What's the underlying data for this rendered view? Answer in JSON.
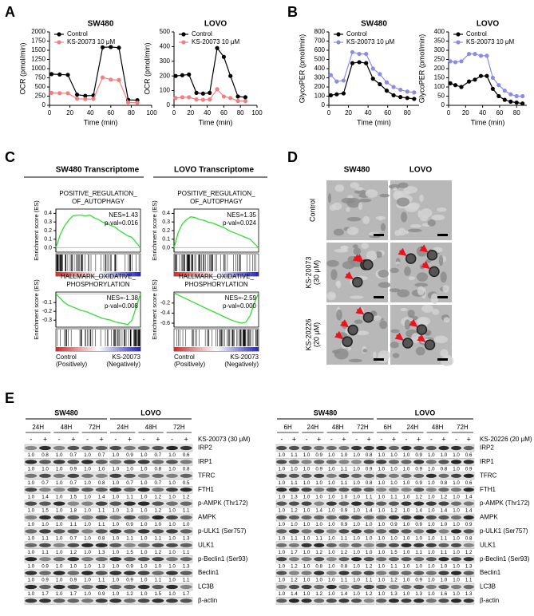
{
  "panel_labels": [
    "A",
    "B",
    "C",
    "D",
    "E"
  ],
  "chart_data": [
    {
      "type": "line",
      "title": "SW480",
      "xlabel": "Time (min)",
      "ylabel": "OCR (pmol/min)",
      "x": [
        2,
        10,
        18,
        27,
        35,
        43,
        52,
        60,
        68,
        77,
        86
      ],
      "xlim": [
        0,
        100
      ],
      "ylim": [
        0,
        2000
      ],
      "xticks": [
        0,
        20,
        40,
        60,
        80,
        100
      ],
      "yticks": [
        0,
        250,
        500,
        750,
        1000,
        1250,
        1500,
        1750,
        2000
      ],
      "legend": "upper left",
      "series": [
        {
          "name": "Control",
          "color": "#000000",
          "values": [
            850,
            840,
            830,
            290,
            260,
            270,
            1580,
            1590,
            1570,
            150,
            140
          ]
        },
        {
          "name": "KS-20073 10 μM",
          "color": "#f08080",
          "values": [
            340,
            330,
            330,
            180,
            170,
            175,
            760,
            700,
            690,
            80,
            70
          ]
        }
      ]
    },
    {
      "type": "line",
      "title": "LOVO",
      "xlabel": "Time (min)",
      "ylabel": "OCR (pmol/min)",
      "x": [
        2,
        10,
        18,
        27,
        35,
        43,
        52,
        60,
        68,
        77,
        86
      ],
      "xlim": [
        0,
        100
      ],
      "ylim": [
        0,
        500
      ],
      "xticks": [
        0,
        20,
        40,
        60,
        80,
        100
      ],
      "yticks": [
        0,
        100,
        200,
        300,
        400,
        500
      ],
      "legend": "upper left",
      "series": [
        {
          "name": "Control",
          "color": "#000000",
          "values": [
            200,
            205,
            210,
            85,
            80,
            85,
            390,
            330,
            200,
            60,
            55
          ]
        },
        {
          "name": "KS-20073 10 μM",
          "color": "#f08080",
          "values": [
            50,
            55,
            55,
            40,
            38,
            40,
            110,
            60,
            50,
            30,
            28
          ]
        }
      ]
    },
    {
      "type": "line",
      "title": "SW480",
      "xlabel": "Time (min)",
      "ylabel": "GlycoPER (pmol/min)",
      "x": [
        2,
        8,
        15,
        24,
        31,
        38,
        45,
        52,
        59,
        66,
        73,
        80,
        87
      ],
      "xlim": [
        0,
        92
      ],
      "ylim": [
        0,
        800
      ],
      "xticks": [
        0,
        20,
        40,
        60,
        80
      ],
      "yticks": [
        0,
        100,
        200,
        300,
        400,
        500,
        600,
        700,
        800
      ],
      "legend": "upper left",
      "series": [
        {
          "name": "Control",
          "color": "#000000",
          "values": [
            110,
            120,
            130,
            460,
            470,
            460,
            290,
            230,
            160,
            110,
            90,
            80,
            70
          ]
        },
        {
          "name": "KS-20073 10 μM",
          "color": "#8b8be8",
          "values": [
            330,
            260,
            270,
            580,
            560,
            560,
            400,
            340,
            250,
            200,
            170,
            150,
            140
          ]
        }
      ]
    },
    {
      "type": "line",
      "title": "LOVO",
      "xlabel": "Time (min)",
      "ylabel": "GlycoPER (pmol/min)",
      "x": [
        2,
        8,
        15,
        24,
        31,
        38,
        45,
        52,
        59,
        66,
        73,
        80,
        87
      ],
      "xlim": [
        0,
        92
      ],
      "ylim": [
        0,
        400
      ],
      "xticks": [
        0,
        20,
        40,
        60,
        80
      ],
      "yticks": [
        0,
        50,
        100,
        150,
        200,
        250,
        300,
        350,
        400
      ],
      "legend": "upper left",
      "series": [
        {
          "name": "Control",
          "color": "#000000",
          "values": [
            120,
            110,
            100,
            130,
            140,
            160,
            160,
            90,
            50,
            30,
            20,
            15,
            10
          ]
        },
        {
          "name": "KS-20073 10 μM",
          "color": "#8b8be8",
          "values": [
            240,
            235,
            240,
            280,
            280,
            270,
            270,
            150,
            110,
            80,
            60,
            50,
            50
          ]
        }
      ]
    },
    {
      "type": "line",
      "title_lines": [
        "POSITIVE_REGULATION_",
        "OF_AUTOPHAGY"
      ],
      "annotations": [
        "NES=1.43",
        "p-val=0.016"
      ],
      "ylabel": "Enrichment score (ES)",
      "color": "#33dd33",
      "xlim": [
        0,
        100
      ],
      "ylim": [
        -0.05,
        0.45
      ],
      "yticks": [
        {
          "value": 0,
          "label": "0.0"
        },
        0.1,
        0.2,
        0.3,
        0.4
      ],
      "x": [
        0,
        5,
        10,
        15,
        20,
        25,
        30,
        35,
        40,
        45,
        50,
        55,
        60,
        65,
        70,
        75,
        80,
        85,
        90,
        95,
        100
      ],
      "values": [
        0,
        0.15,
        0.25,
        0.32,
        0.37,
        0.38,
        0.38,
        0.37,
        0.38,
        0.35,
        0.33,
        0.3,
        0.28,
        0.26,
        0.24,
        0.2,
        0.17,
        0.14,
        0.12,
        0.06,
        0
      ]
    },
    {
      "type": "line",
      "title_lines": [
        "POSITIVE_REGULATION_",
        "OF_AUTOPHAGY"
      ],
      "annotations": [
        "NES=1.35",
        "p-val=0.024"
      ],
      "ylabel": "Enrichment score (ES)",
      "color": "#33dd33",
      "xlim": [
        0,
        100
      ],
      "ylim": [
        -0.05,
        0.45
      ],
      "yticks": [
        {
          "value": 0,
          "label": "0.0"
        },
        0.1,
        0.2,
        0.3,
        0.4
      ],
      "x": [
        0,
        5,
        10,
        15,
        20,
        25,
        30,
        35,
        40,
        45,
        50,
        55,
        60,
        65,
        70,
        75,
        80,
        85,
        90,
        95,
        100
      ],
      "values": [
        0,
        0.18,
        0.28,
        0.33,
        0.36,
        0.35,
        0.33,
        0.32,
        0.3,
        0.29,
        0.27,
        0.25,
        0.23,
        0.2,
        0.18,
        0.16,
        0.14,
        0.12,
        0.1,
        0.05,
        0
      ]
    },
    {
      "type": "line",
      "title_lines": [
        "HALLMARK_OXIDATIVE_",
        "PHOSPHORYLATION"
      ],
      "annotations": [
        "NES=-1.38",
        "p-val=0.008"
      ],
      "ylabel": "Enrichment score (ES)",
      "color": "#33dd33",
      "xlim": [
        0,
        100
      ],
      "ylim": [
        -0.38,
        0.02
      ],
      "yticks": [
        -0.1,
        -0.2,
        -0.3
      ],
      "x": [
        0,
        5,
        10,
        15,
        20,
        25,
        30,
        35,
        40,
        45,
        50,
        55,
        60,
        65,
        70,
        75,
        80,
        85,
        90,
        95,
        100
      ],
      "values": [
        0,
        -0.05,
        -0.1,
        -0.13,
        -0.15,
        -0.17,
        -0.19,
        -0.2,
        -0.22,
        -0.24,
        -0.26,
        -0.28,
        -0.29,
        -0.3,
        -0.32,
        -0.33,
        -0.34,
        -0.35,
        -0.3,
        -0.15,
        0
      ]
    },
    {
      "type": "line",
      "title_lines": [
        "HALLMARK_OXIDATIVE_",
        "PHOSPHORYLATION"
      ],
      "annotations": [
        "NES=-2.59",
        "p-val=0.000"
      ],
      "ylabel": "Enrichment score (ES)",
      "color": "#33dd33",
      "xlim": [
        0,
        100
      ],
      "ylim": [
        -0.68,
        0.02
      ],
      "yticks": [
        -0.2,
        -0.4,
        -0.6
      ],
      "x": [
        0,
        5,
        10,
        15,
        20,
        25,
        30,
        35,
        40,
        45,
        50,
        55,
        60,
        65,
        70,
        75,
        80,
        85,
        90,
        95,
        100
      ],
      "values": [
        0,
        -0.04,
        -0.08,
        -0.12,
        -0.16,
        -0.2,
        -0.24,
        -0.28,
        -0.32,
        -0.36,
        -0.4,
        -0.44,
        -0.48,
        -0.52,
        -0.55,
        -0.58,
        -0.6,
        -0.58,
        -0.45,
        -0.2,
        0
      ]
    }
  ],
  "panel_c": {
    "columns": [
      "SW480 Transcriptome",
      "LOVO Transcriptome"
    ],
    "left_label": [
      "Control",
      "(Positively)"
    ],
    "right_label": [
      "KS-20073",
      "(Negatively)"
    ]
  },
  "panel_d": {
    "columns": [
      "SW480",
      "LOVO"
    ],
    "rows": [
      [
        "Control"
      ],
      [
        "KS-20073",
        "(30 μM)"
      ],
      [
        "KS-20226",
        "(20 μM)"
      ]
    ]
  },
  "panel_e": {
    "blots": [
      {
        "cell_lines": [
          "SW480",
          "LOVO"
        ],
        "times": [
          "24H",
          "48H",
          "72H"
        ],
        "signs": [
          "-",
          "+"
        ],
        "treatment": "KS-20073 (30 μM)",
        "proteins": [
          "IRP2",
          "IRP1",
          "TFRC",
          "FTH1",
          "p-AMPK (Thr172)",
          "AMPK",
          "p-ULK1 (Ser757)",
          "ULK1",
          "p-Beclin1 (Ser93)",
          "Beclin1",
          "LC3B",
          "β-actin"
        ],
        "quant": [
          [
            "1.0",
            "0.8",
            "1.0",
            "0.7",
            "1.0",
            "0.7",
            "1.0",
            "0.9",
            "1.0",
            "0.7",
            "1.0",
            "0.6"
          ],
          [
            "1.0",
            "1.0",
            "1.0",
            "0.9",
            "1.0",
            "1.0",
            "1.0",
            "1.0",
            "1.0",
            "0.8",
            "1.0",
            "0.8"
          ],
          [
            "1.0",
            "0.7",
            "1.0",
            "0.7",
            "1.0",
            "0.8",
            "1.0",
            "0.7",
            "1.0",
            "0.7",
            "1.0",
            "0.5"
          ],
          [
            "1.0",
            "1.4",
            "1.0",
            "1.5",
            "1.0",
            "1.4",
            "1.0",
            "1.1",
            "1.0",
            "1.2",
            "1.0",
            "1.2"
          ],
          [
            "1.0",
            "1.5",
            "1.0",
            "1.8",
            "1.0",
            "1.1",
            "1.0",
            "1.3",
            "1.0",
            "1.2",
            "1.0",
            "1.1"
          ],
          [
            "1.0",
            "1.0",
            "1.0",
            "1.1",
            "1.0",
            "1.1",
            "1.0",
            "0.9",
            "1.0",
            "1.0",
            "1.0",
            "1.0"
          ],
          [
            "1.0",
            "1.1",
            "1.0",
            "0.7",
            "1.0",
            "0.8",
            "1.0",
            "1.1",
            "1.0",
            "1.1",
            "1.0",
            "1.3"
          ],
          [
            "1.0",
            "1.1",
            "1.0",
            "1.2",
            "1.0",
            "1.3",
            "1.0",
            "1.5",
            "1.0",
            "1.2",
            "1.0",
            "1.1"
          ],
          [
            "1.0",
            "0.9",
            "1.0",
            "1.0",
            "1.0",
            "1.3",
            "1.0",
            "0.9",
            "1.0",
            "1.0",
            "1.0",
            "1.3"
          ],
          [
            "1.0",
            "0.9",
            "1.0",
            "0.9",
            "1.0",
            "1.1",
            "1.0",
            "0.9",
            "1.0",
            "1.1",
            "1.0",
            "1.1"
          ],
          [
            "1.0",
            "1.7",
            "1.0",
            "1.7",
            "1.0",
            "0.9",
            "1.0",
            "1.2",
            "1.0",
            "1.5",
            "1.0",
            "1.7"
          ]
        ]
      },
      {
        "cell_lines": [
          "SW480",
          "LOVO"
        ],
        "times": [
          "6H",
          "24H",
          "48H",
          "72H"
        ],
        "signs": [
          "-",
          "+"
        ],
        "treatment": "KS-20226 (20 μM)",
        "proteins": [
          "IRP2",
          "IRP1",
          "TFRC",
          "FTH1",
          "p-AMPK (Thr172)",
          "AMPK",
          "p-ULK1 (Ser757)",
          "ULK1",
          "p-Beclin1 (Ser93)",
          "Beclin1",
          "LC3B",
          "β-actin"
        ],
        "quant": [
          [
            "1.0",
            "1.1",
            "1.0",
            "0.9",
            "1.0",
            "1.0",
            "1.0",
            "0.8",
            "1.0",
            "1.0",
            "1.0",
            "0.9",
            "1.0",
            "1.0",
            "1.0",
            "0.6"
          ],
          [
            "1.0",
            "1.0",
            "1.0",
            "0.9",
            "1.0",
            "1.1",
            "1.0",
            "0.9",
            "1.0",
            "1.0",
            "1.0",
            "0.9",
            "1.0",
            "0.8",
            "1.0",
            "0.9"
          ],
          [
            "1.0",
            "1.1",
            "1.0",
            "1.0",
            "1.0",
            "1.1",
            "1.0",
            "0.8",
            "1.0",
            "1.0",
            "1.0",
            "0.9",
            "1.0",
            "0.8",
            "1.0",
            "0.6"
          ],
          [
            "1.0",
            "1.3",
            "1.0",
            "1.0",
            "1.0",
            "1.0",
            "1.0",
            "1.1",
            "1.0",
            "1.1",
            "1.0",
            "1.2",
            "1.0",
            "1.2",
            "1.0",
            "1.4"
          ],
          [
            "1.0",
            "1.2",
            "1.0",
            "1.4",
            "1.0",
            "0.9",
            "1.0",
            "1.4",
            "1.0",
            "1.2",
            "1.0",
            "1.4",
            "1.0",
            "1.4",
            "1.0",
            "1.4"
          ],
          [
            "1.0",
            "1.0",
            "1.0",
            "1.0",
            "1.0",
            "0.9",
            "1.0",
            "1.0",
            "1.0",
            "0.9",
            "1.0",
            "0.9",
            "1.0",
            "1.0",
            "1.0",
            "0.9"
          ],
          [
            "1.0",
            "1.1",
            "1.0",
            "1.1",
            "1.0",
            "1.1",
            "1.0",
            "1.0",
            "1.0",
            "1.0",
            "1.0",
            "1.0",
            "1.0",
            "1.1",
            "1.0",
            "0.8"
          ],
          [
            "1.0",
            "1.7",
            "1.0",
            "1.2",
            "1.0",
            "1.2",
            "1.0",
            "1.0",
            "1.0",
            "1.5",
            "1.0",
            "1.1",
            "1.0",
            "1.1",
            "1.0",
            "1.2"
          ],
          [
            "1.0",
            "1.2",
            "1.0",
            "0.8",
            "1.0",
            "0.8",
            "1.0",
            "1.2",
            "1.0",
            "1.1",
            "1.0",
            "1.0",
            "1.0",
            "1.0",
            "1.0",
            "1.3"
          ],
          [
            "1.0",
            "1.2",
            "1.0",
            "1.0",
            "1.0",
            "1.1",
            "1.0",
            "1.1",
            "1.0",
            "1.2",
            "1.0",
            "0.9",
            "1.0",
            "1.0",
            "1.0",
            "1.1"
          ],
          [
            "1.0",
            "1.4",
            "1.0",
            "1.2",
            "1.0",
            "1.4",
            "1.0",
            "1.2",
            "1.0",
            "1.3",
            "1.0",
            "1.3",
            "1.0",
            "1.6",
            "1.0",
            "1.3"
          ]
        ]
      }
    ]
  }
}
